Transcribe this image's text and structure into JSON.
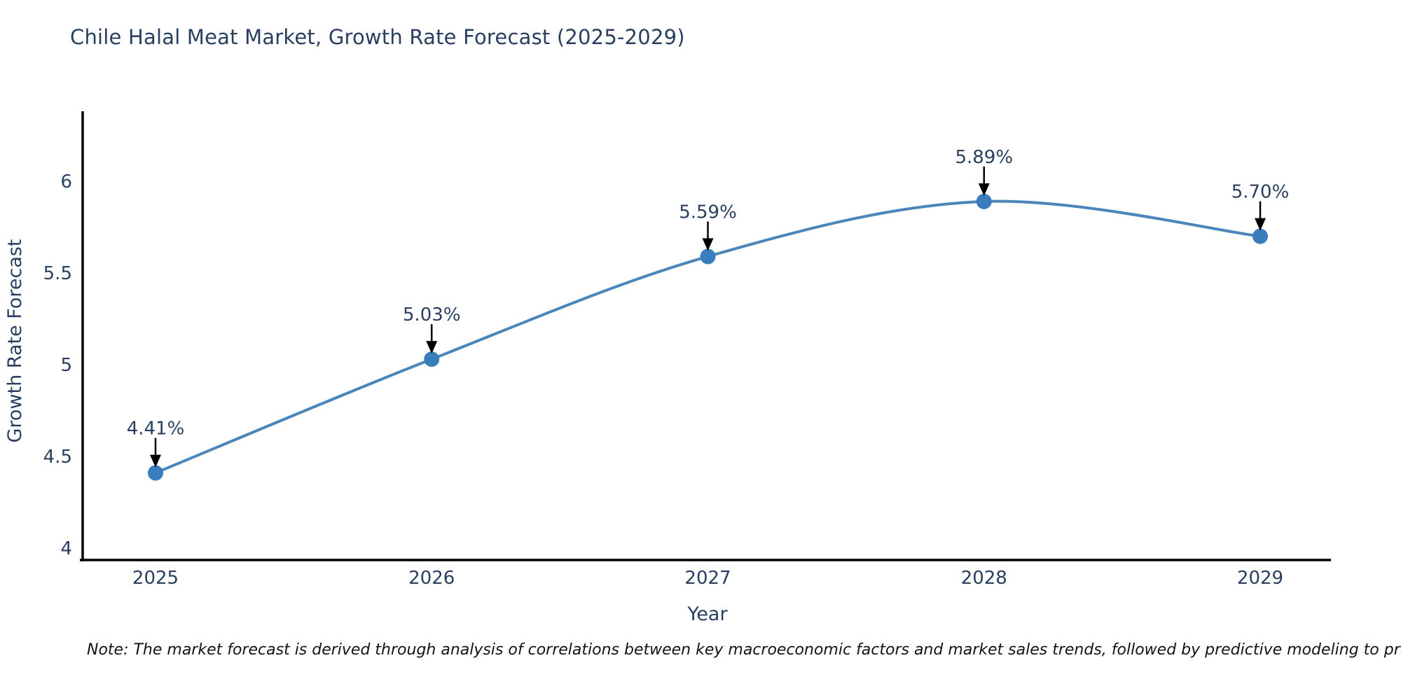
{
  "title": "Chile Halal Meat Market, Growth Rate Forecast (2025-2029)",
  "note": "Note: The market forecast is derived through analysis of correlations between key macroeconomic factors and market sales trends, followed by predictive modeling to project future sales",
  "chart_data": {
    "type": "line",
    "title": "Chile Halal Meat Market, Growth Rate Forecast (2025-2029)",
    "xlabel": "Year",
    "ylabel": "Growth Rate Forecast",
    "x": [
      2025,
      2026,
      2027,
      2028,
      2029
    ],
    "xtick_labels": [
      "2025",
      "2026",
      "2027",
      "2028",
      "2029"
    ],
    "series": [
      {
        "name": "Growth Rate Forecast",
        "values": [
          4.41,
          5.03,
          5.59,
          5.89,
          5.7
        ],
        "point_labels": [
          "4.41%",
          "5.03%",
          "5.59%",
          "5.89%",
          "5.70%"
        ]
      }
    ],
    "yticks": [
      4,
      4.5,
      5,
      5.5,
      6
    ],
    "ytick_labels": [
      "4",
      "4.5",
      "5",
      "5.5",
      "6"
    ],
    "ylim": [
      3.93,
      6.38
    ],
    "line_shape": "spline",
    "grid": false,
    "legend": "none",
    "annotations_have_arrows": true,
    "colors": {
      "line": "#4a86ba",
      "marker": "#3a7dbd",
      "arrow": "#000000",
      "axis_line": "#000000",
      "chart_text": "#2a3f5f",
      "note_text": "#141414",
      "background": "#ffffff"
    }
  }
}
